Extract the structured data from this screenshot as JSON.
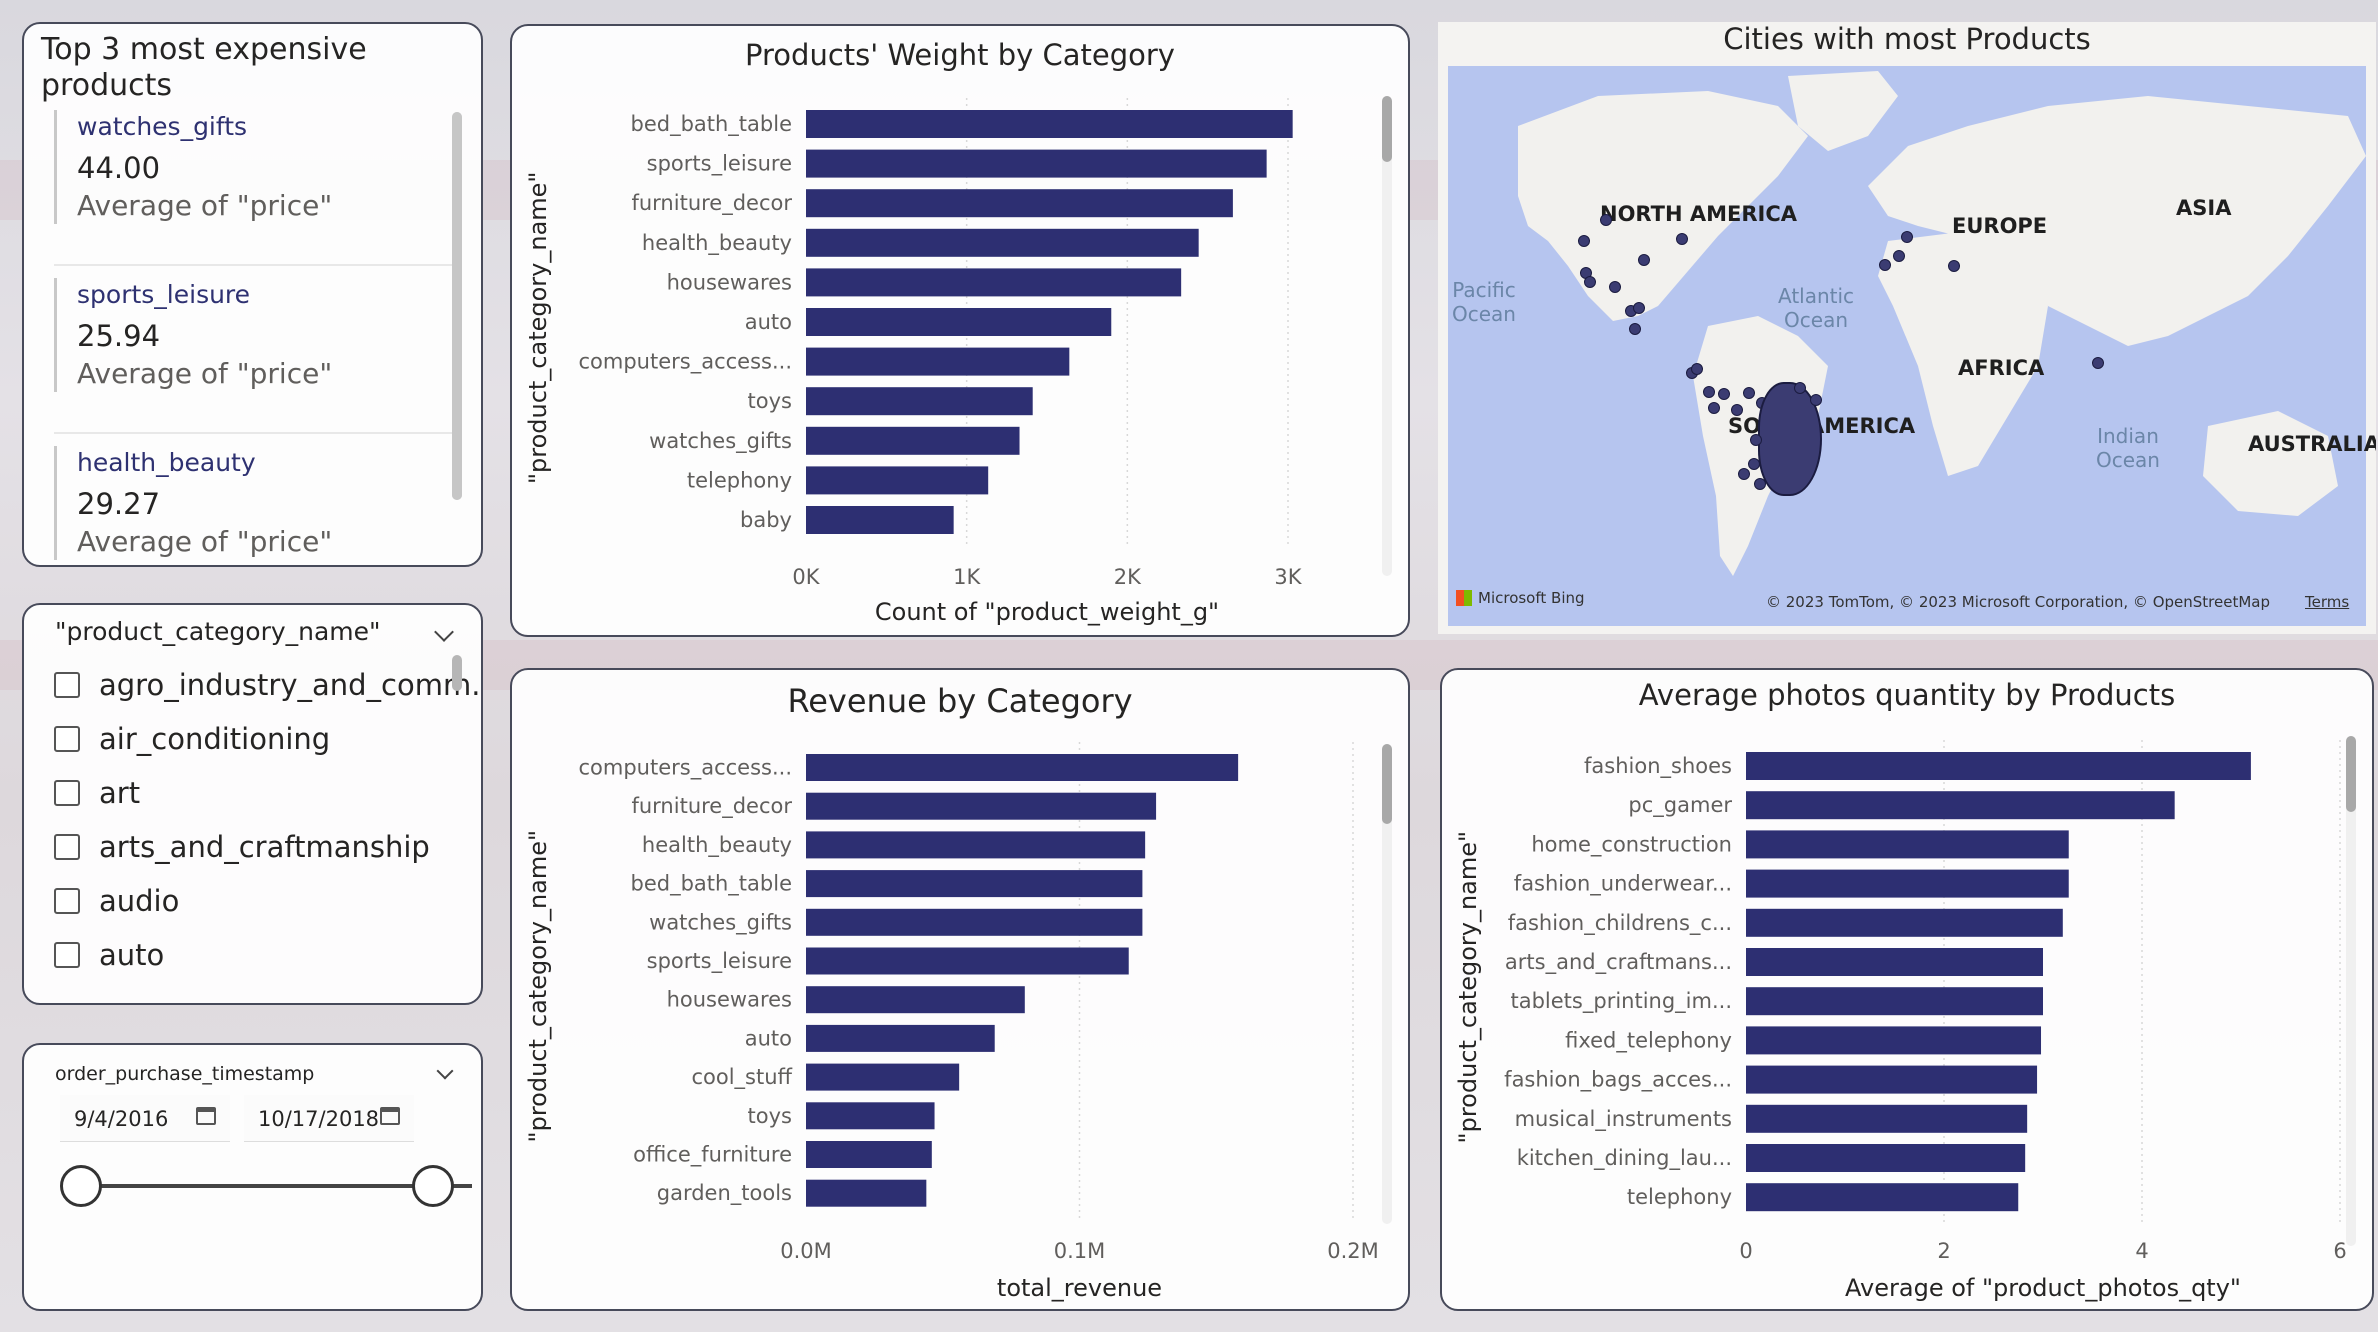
{
  "top_products": {
    "title": "Top 3 most expensive products",
    "items": [
      {
        "category": "watches_gifts",
        "value": "44.00",
        "label": "Average of \"price\""
      },
      {
        "category": "sports_leisure",
        "value": "25.94",
        "label": "Average of \"price\""
      },
      {
        "category": "health_beauty",
        "value": "29.27",
        "label": "Average of \"price\""
      }
    ]
  },
  "category_slicer": {
    "title": "\"product_category_name\"",
    "options": [
      "agro_industry_and_comm...",
      "air_conditioning",
      "art",
      "arts_and_craftmanship",
      "audio",
      "auto"
    ]
  },
  "date_slicer": {
    "title": "order_purchase_timestamp",
    "start": "9/4/2016",
    "end": "10/17/2018"
  },
  "map": {
    "title": "Cities with most Products",
    "continents": [
      "NORTH AMERICA",
      "EUROPE",
      "ASIA",
      "AFRICA",
      "SO",
      "AMERICA",
      "AUSTRALIA"
    ],
    "oceans": [
      "Pacific\nOcean",
      "Atlantic\nOcean",
      "Indian\nOcean"
    ],
    "attribution_left": "Microsoft Bing",
    "attribution_right": "© 2023 TomTom, © 2023 Microsoft Corporation, © OpenStreetMap",
    "terms": "Terms",
    "colors": {
      "land": "#f2f1ee",
      "water": "#b6c5ef",
      "point": "#3b3c72"
    }
  },
  "chart_data": [
    {
      "type": "bar",
      "orientation": "horizontal",
      "title": "Products' Weight by Category",
      "xlabel": "Count of \"product_weight_g\"",
      "ylabel": "\"product_category_name\"",
      "categories": [
        "bed_bath_table",
        "sports_leisure",
        "furniture_decor",
        "health_beauty",
        "housewares",
        "auto",
        "computers_access...",
        "toys",
        "watches_gifts",
        "telephony",
        "baby"
      ],
      "values": [
        3029,
        2867,
        2657,
        2444,
        2335,
        1900,
        1639,
        1411,
        1329,
        1134,
        919
      ],
      "xlim": [
        0,
        3000
      ],
      "xticks": [
        "0K",
        "1K",
        "2K",
        "3K"
      ],
      "color": "#2d2f72"
    },
    {
      "type": "bar",
      "orientation": "horizontal",
      "title": "Revenue by Category",
      "xlabel": "total_revenue",
      "ylabel": "\"product_category_name\"",
      "categories": [
        "computers_access...",
        "furniture_decor",
        "health_beauty",
        "bed_bath_table",
        "watches_gifts",
        "sports_leisure",
        "housewares",
        "auto",
        "cool_stuff",
        "toys",
        "office_furniture",
        "garden_tools"
      ],
      "values": [
        158000,
        128000,
        124000,
        123000,
        123000,
        118000,
        80000,
        69000,
        56000,
        47000,
        46000,
        44000
      ],
      "xlim": [
        0,
        200000
      ],
      "xticks": [
        "0.0M",
        "0.1M",
        "0.2M"
      ],
      "color": "#2d2f72"
    },
    {
      "type": "bar",
      "orientation": "horizontal",
      "title": "Average photos quantity by Products",
      "xlabel": "Average of \"product_photos_qty\"",
      "ylabel": "\"product_category_name\"",
      "categories": [
        "fashion_shoes",
        "pc_gamer",
        "home_construction",
        "fashion_underwear...",
        "fashion_childrens_c...",
        "arts_and_craftmans...",
        "tablets_printing_im...",
        "fixed_telephony",
        "fashion_bags_acces...",
        "musical_instruments",
        "kitchen_dining_lau...",
        "telephony"
      ],
      "values": [
        5.1,
        4.33,
        3.26,
        3.26,
        3.2,
        3.0,
        3.0,
        2.98,
        2.94,
        2.84,
        2.82,
        2.75
      ],
      "xlim": [
        0,
        6
      ],
      "xticks": [
        "0",
        "2",
        "4",
        "6"
      ],
      "color": "#2d2f72"
    }
  ]
}
